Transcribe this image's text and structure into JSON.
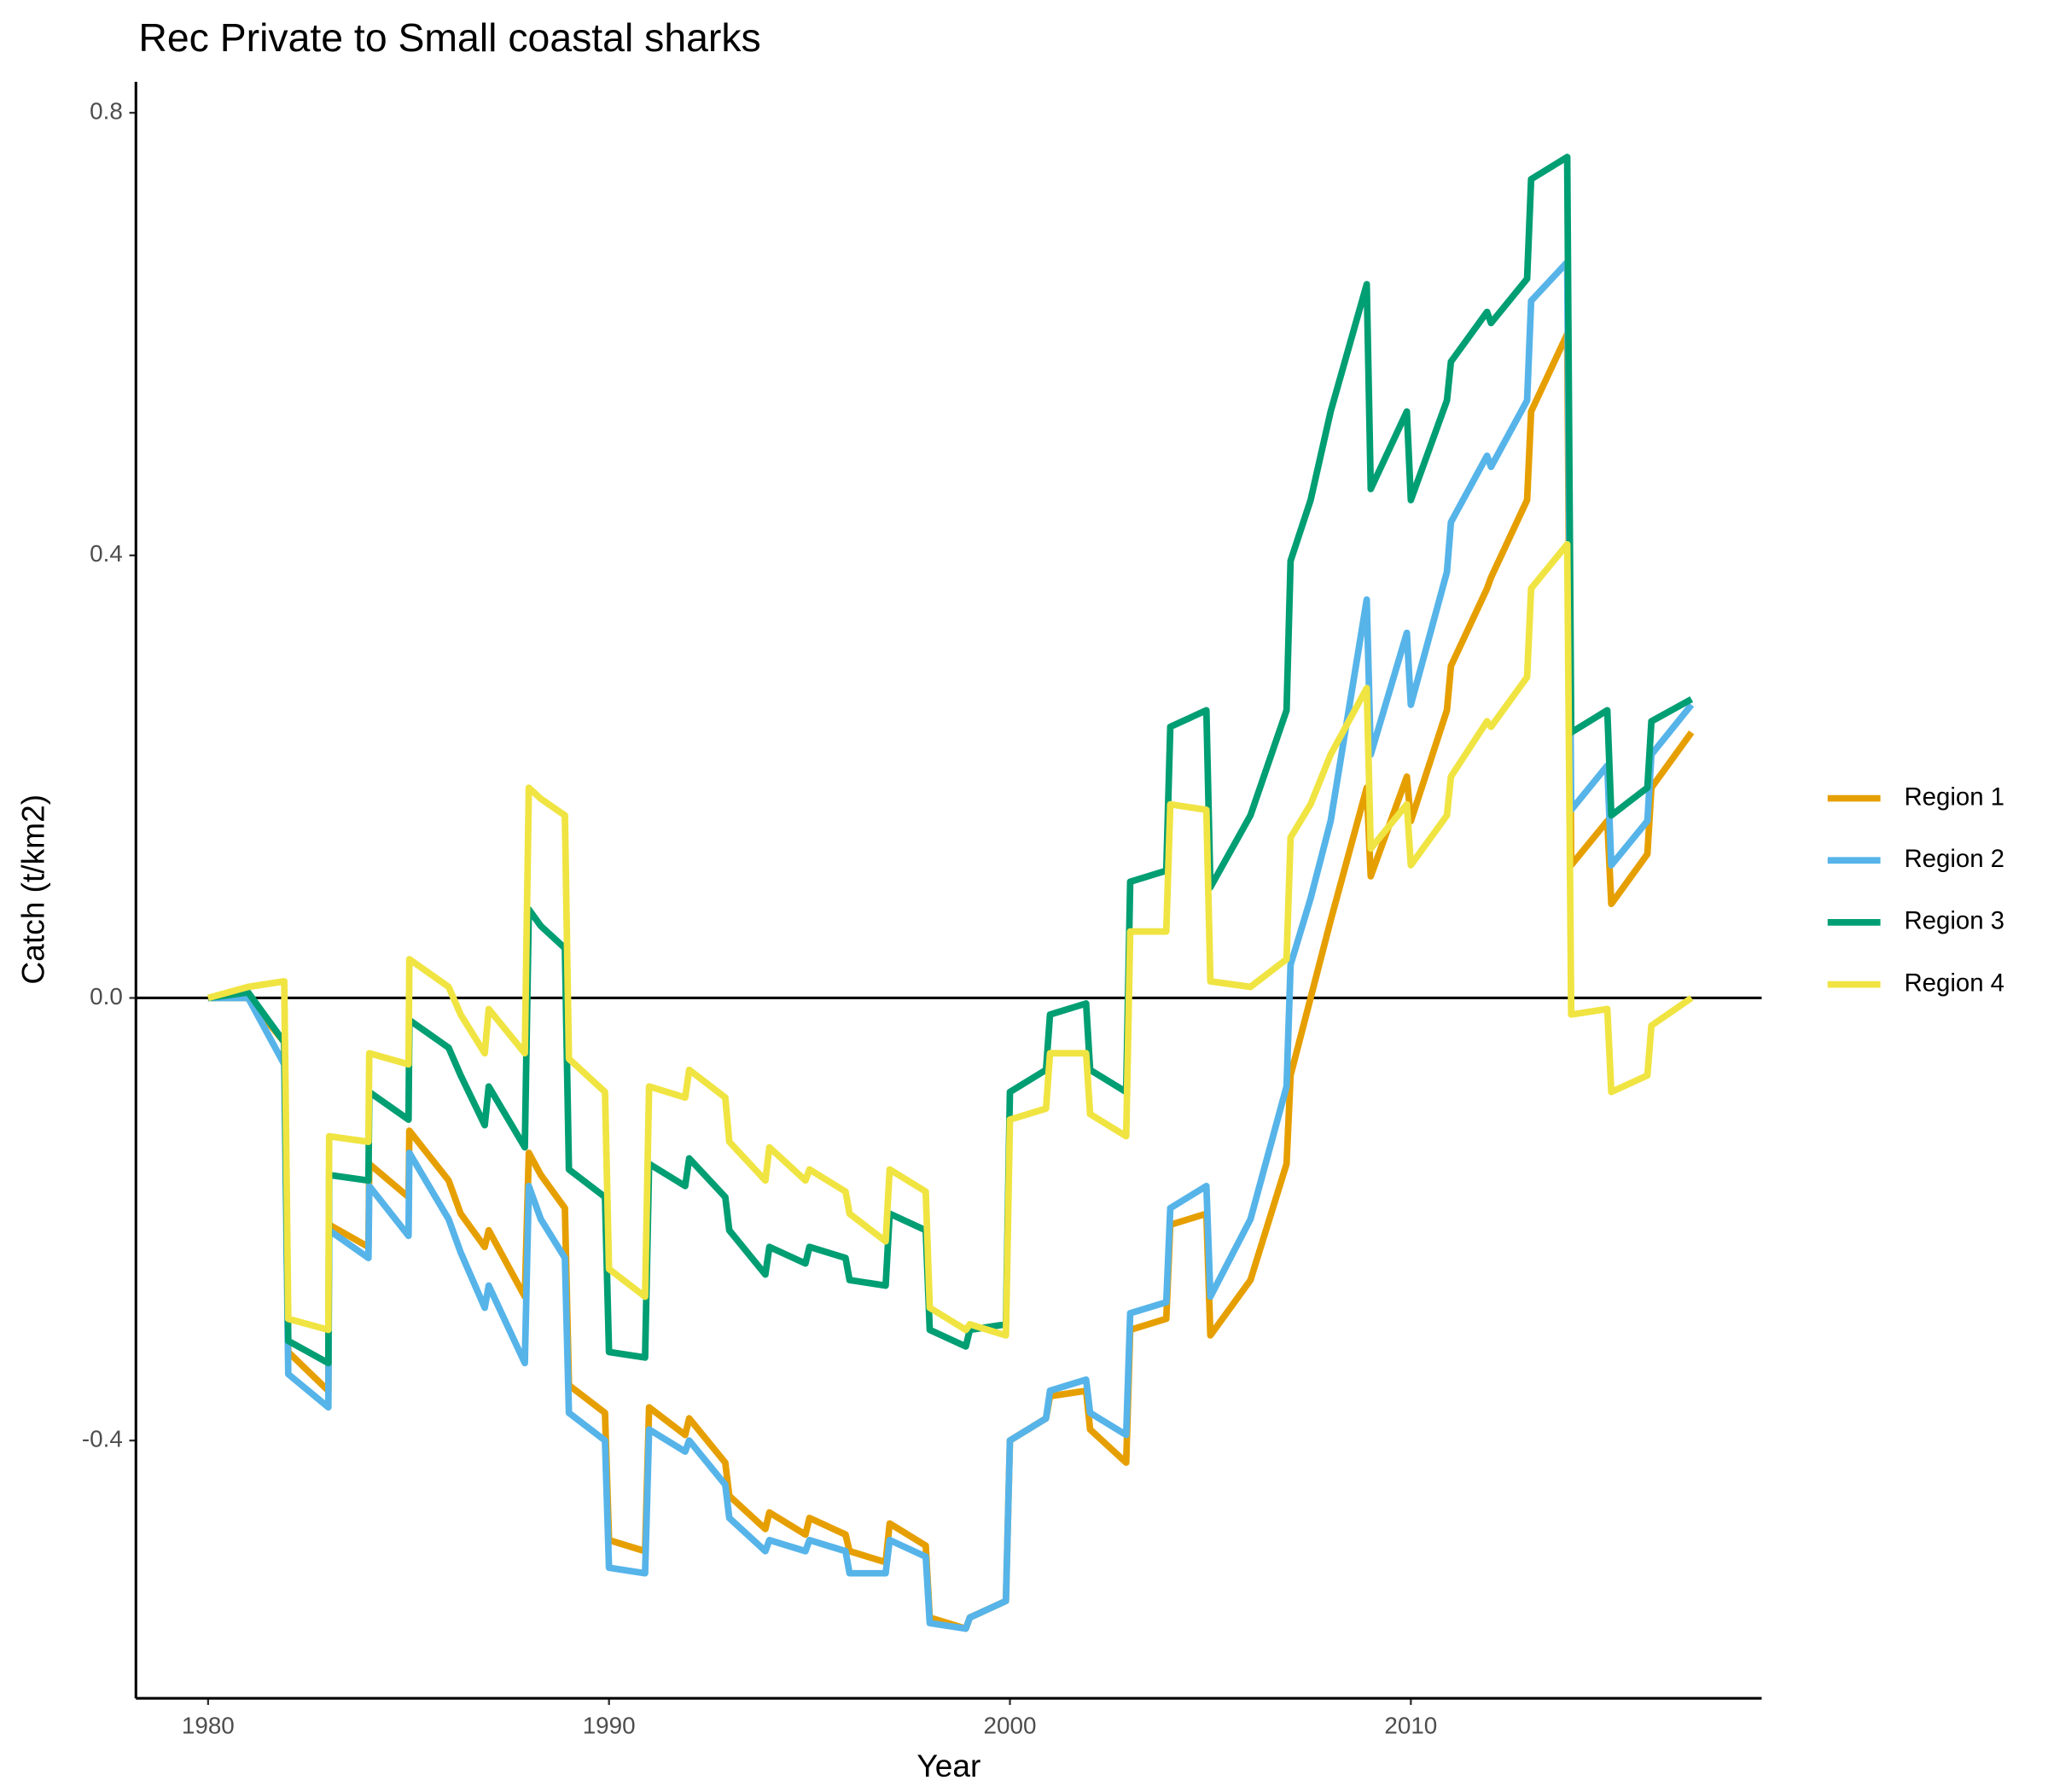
{
  "chart_data": {
    "type": "line",
    "title": "Rec Private to Small coastal sharks",
    "x_label": "Year",
    "y_label": "Catch (t/km2)",
    "x": [
      1980,
      1981,
      1981.9,
      1982,
      1983,
      1983.02,
      1984,
      1984.02,
      1985,
      1985.02,
      1986,
      1986.3,
      1986.9,
      1987,
      1987.9,
      1988,
      1988.3,
      1988.9,
      1989,
      1989.9,
      1990,
      1990.9,
      1991,
      1991.9,
      1992,
      1992.9,
      1993,
      1993.9,
      1994,
      1994.9,
      1995,
      1995.9,
      1996,
      1996.9,
      1997,
      1997.9,
      1998,
      1998.9,
      1999,
      1999.9,
      2000,
      2000.9,
      2001,
      2001.9,
      2002,
      2002.9,
      2003,
      2003.9,
      2004,
      2004.9,
      2005,
      2006,
      2006.9,
      2007,
      2007.5,
      2008,
      2008.9,
      2009,
      2009.9,
      2010,
      2010.9,
      2011,
      2011.9,
      2012,
      2012.9,
      2013,
      2013.9,
      2014,
      2014.9,
      2015,
      2015.9,
      2016,
      2017
    ],
    "series": [
      {
        "name": "Region 1",
        "color": "#E69F00",
        "values": [
          0,
          0,
          -0.04,
          -0.32,
          -0.355,
          -0.205,
          -0.225,
          -0.15,
          -0.18,
          -0.12,
          -0.165,
          -0.195,
          -0.225,
          -0.21,
          -0.27,
          -0.14,
          -0.16,
          -0.19,
          -0.35,
          -0.375,
          -0.49,
          -0.5,
          -0.37,
          -0.395,
          -0.38,
          -0.42,
          -0.45,
          -0.48,
          -0.465,
          -0.485,
          -0.47,
          -0.485,
          -0.5,
          -0.51,
          -0.475,
          -0.495,
          -0.56,
          -0.57,
          -0.56,
          -0.545,
          -0.4,
          -0.38,
          -0.36,
          -0.355,
          -0.39,
          -0.42,
          -0.3,
          -0.29,
          -0.205,
          -0.195,
          -0.305,
          -0.255,
          -0.15,
          -0.07,
          0,
          0.07,
          0.19,
          0.11,
          0.2,
          0.16,
          0.26,
          0.3,
          0.37,
          0.38,
          0.45,
          0.53,
          0.6,
          0.12,
          0.16,
          0.085,
          0.13,
          0.19,
          0.24
        ]
      },
      {
        "name": "Region 2",
        "color": "#56B4E9",
        "values": [
          0,
          0,
          -0.06,
          -0.34,
          -0.37,
          -0.21,
          -0.235,
          -0.17,
          -0.215,
          -0.14,
          -0.2,
          -0.23,
          -0.28,
          -0.26,
          -0.33,
          -0.17,
          -0.2,
          -0.235,
          -0.375,
          -0.4,
          -0.515,
          -0.52,
          -0.39,
          -0.41,
          -0.4,
          -0.44,
          -0.47,
          -0.5,
          -0.49,
          -0.5,
          -0.49,
          -0.5,
          -0.52,
          -0.52,
          -0.49,
          -0.505,
          -0.565,
          -0.57,
          -0.56,
          -0.545,
          -0.4,
          -0.38,
          -0.355,
          -0.345,
          -0.375,
          -0.395,
          -0.285,
          -0.275,
          -0.19,
          -0.17,
          -0.27,
          -0.2,
          -0.08,
          0.03,
          0.09,
          0.16,
          0.36,
          0.22,
          0.33,
          0.265,
          0.385,
          0.43,
          0.49,
          0.48,
          0.54,
          0.63,
          0.665,
          0.17,
          0.21,
          0.12,
          0.16,
          0.22,
          0.265
        ]
      },
      {
        "name": "Region 3",
        "color": "#009E73",
        "values": [
          0,
          0.005,
          -0.04,
          -0.31,
          -0.33,
          -0.16,
          -0.165,
          -0.085,
          -0.11,
          -0.02,
          -0.045,
          -0.07,
          -0.115,
          -0.08,
          -0.135,
          0.08,
          0.065,
          0.045,
          -0.155,
          -0.18,
          -0.32,
          -0.325,
          -0.15,
          -0.17,
          -0.145,
          -0.18,
          -0.21,
          -0.25,
          -0.225,
          -0.24,
          -0.225,
          -0.235,
          -0.255,
          -0.26,
          -0.195,
          -0.21,
          -0.3,
          -0.315,
          -0.3,
          -0.295,
          -0.085,
          -0.065,
          -0.015,
          -0.005,
          -0.065,
          -0.085,
          0.105,
          0.115,
          0.245,
          0.26,
          0.1,
          0.165,
          0.26,
          0.395,
          0.45,
          0.53,
          0.645,
          0.46,
          0.53,
          0.45,
          0.54,
          0.575,
          0.62,
          0.61,
          0.65,
          0.74,
          0.76,
          0.24,
          0.26,
          0.165,
          0.19,
          0.25,
          0.27
        ]
      },
      {
        "name": "Region 4",
        "color": "#F0E442",
        "values": [
          0,
          0.01,
          0.015,
          -0.29,
          -0.3,
          -0.125,
          -0.13,
          -0.05,
          -0.06,
          0.035,
          0.01,
          -0.015,
          -0.05,
          -0.01,
          -0.05,
          0.19,
          0.18,
          0.165,
          -0.055,
          -0.085,
          -0.245,
          -0.27,
          -0.08,
          -0.09,
          -0.065,
          -0.09,
          -0.13,
          -0.165,
          -0.135,
          -0.165,
          -0.155,
          -0.175,
          -0.195,
          -0.22,
          -0.155,
          -0.175,
          -0.28,
          -0.3,
          -0.295,
          -0.305,
          -0.11,
          -0.1,
          -0.05,
          -0.05,
          -0.105,
          -0.125,
          0.06,
          0.06,
          0.175,
          0.17,
          0.015,
          0.01,
          0.035,
          0.145,
          0.175,
          0.22,
          0.28,
          0.135,
          0.175,
          0.12,
          0.165,
          0.2,
          0.25,
          0.245,
          0.29,
          0.37,
          0.41,
          -0.015,
          -0.01,
          -0.085,
          -0.07,
          -0.025,
          0
        ]
      }
    ],
    "xlim": [
      1978.2,
      2018.75
    ],
    "ylim": [
      -0.633,
      0.828
    ],
    "xticks": [
      1980,
      1990,
      2000,
      2010
    ],
    "yticks": [
      -0.4,
      {
        "value": 0,
        "label": "0.0"
      },
      0.4,
      0.8
    ],
    "legend": "right"
  }
}
